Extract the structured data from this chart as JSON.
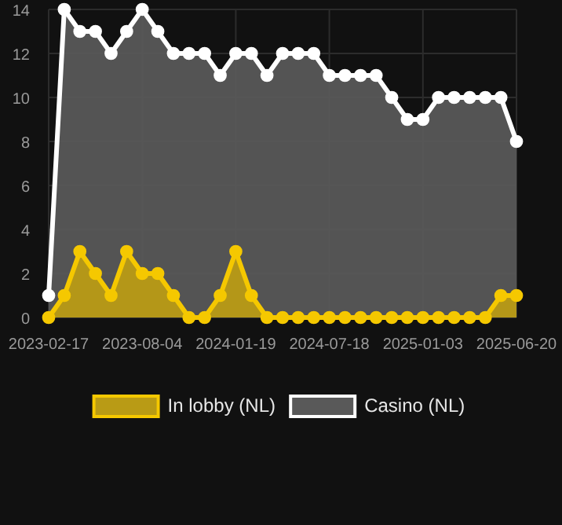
{
  "chart_data": {
    "type": "area",
    "categories": [
      "2023-02-17",
      null,
      null,
      null,
      null,
      null,
      "2023-08-04",
      null,
      null,
      null,
      null,
      null,
      "2024-01-19",
      null,
      null,
      null,
      null,
      null,
      "2024-07-18",
      null,
      null,
      null,
      null,
      null,
      "2025-01-03",
      null,
      null,
      null,
      null,
      null,
      "2025-06-20"
    ],
    "series": [
      {
        "name": "In lobby (NL)",
        "color": "#f5c800",
        "values": [
          0,
          1,
          3,
          2,
          1,
          3,
          2,
          2,
          1,
          0,
          0,
          1,
          3,
          1,
          0,
          0,
          0,
          0,
          0,
          0,
          0,
          0,
          0,
          0,
          0,
          0,
          0,
          0,
          0,
          1,
          1
        ]
      },
      {
        "name": "Casino (NL)",
        "color": "#ffffff",
        "values": [
          1,
          14,
          13,
          13,
          12,
          13,
          14,
          13,
          12,
          12,
          12,
          11,
          12,
          12,
          11,
          12,
          12,
          12,
          11,
          11,
          11,
          11,
          10,
          9,
          9,
          10,
          10,
          10,
          10,
          10,
          8
        ]
      }
    ],
    "ylim": [
      0,
      14
    ],
    "yticks": [
      0,
      2,
      4,
      6,
      8,
      10,
      12,
      14
    ],
    "grid": true,
    "legend": "bottom",
    "marker": "circle"
  }
}
